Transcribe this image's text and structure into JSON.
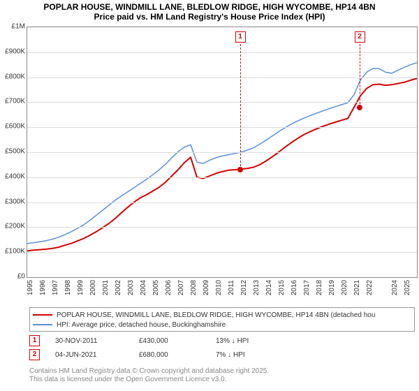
{
  "title_line1": "POPLAR HOUSE, WINDMILL LANE, BLEDLOW RIDGE, HIGH WYCOMBE, HP14 4BN",
  "title_line2": "Price paid vs. HM Land Registry's House Price Index (HPI)",
  "title_fontsize": 12,
  "chart": {
    "type": "line",
    "background_color": "#ffffff",
    "grid_color": "#dcdcdc",
    "plot_border_color": "#888888",
    "x_start": 1995,
    "x_end": 2026,
    "ylim": [
      0,
      1000000
    ],
    "ytick_step": 100000,
    "ytick_labels": [
      "£0",
      "£100K",
      "£200K",
      "£300K",
      "£400K",
      "£500K",
      "£600K",
      "£700K",
      "£800K",
      "£900K",
      "£1M"
    ],
    "xtick_years": [
      1995,
      1996,
      1997,
      1998,
      1999,
      2000,
      2001,
      2002,
      2003,
      2004,
      2005,
      2006,
      2007,
      2008,
      2009,
      2010,
      2011,
      2012,
      2013,
      2014,
      2015,
      2016,
      2017,
      2018,
      2019,
      2020,
      2021,
      2022,
      2024,
      2025
    ],
    "axis_fontsize": 10,
    "series": [
      {
        "name": "POPLAR HOUSE, WINDMILL LANE, BLEDLOW RIDGE, HIGH WYCOMBE, HP14 4BN (detached hou",
        "color": "#d10000",
        "line_width": 2,
        "year_start": 1995,
        "year_step": 0.5,
        "values": [
          105,
          108,
          110,
          112,
          115,
          120,
          128,
          135,
          145,
          155,
          168,
          182,
          198,
          215,
          235,
          258,
          280,
          300,
          318,
          330,
          345,
          360,
          380,
          405,
          430,
          458,
          480,
          400,
          395,
          405,
          415,
          422,
          428,
          430,
          432,
          435,
          440,
          450,
          465,
          482,
          500,
          520,
          538,
          555,
          570,
          582,
          593,
          603,
          612,
          620,
          628,
          635,
          680,
          725,
          755,
          770,
          772,
          768,
          770,
          775,
          780,
          788,
          795
        ]
      },
      {
        "name": "HPI: Average price, detached house, Buckinghamshire",
        "color": "#5a8fd6",
        "line_width": 1.5,
        "year_start": 1995,
        "year_step": 0.5,
        "values": [
          135,
          138,
          142,
          146,
          152,
          160,
          170,
          182,
          195,
          210,
          228,
          248,
          268,
          288,
          308,
          325,
          342,
          358,
          375,
          392,
          410,
          430,
          452,
          478,
          502,
          520,
          530,
          460,
          455,
          468,
          478,
          485,
          490,
          495,
          500,
          508,
          518,
          532,
          548,
          565,
          582,
          598,
          612,
          625,
          636,
          646,
          656,
          665,
          674,
          682,
          690,
          698,
          730,
          788,
          820,
          835,
          834,
          820,
          816,
          828,
          840,
          850,
          858
        ]
      }
    ],
    "markers": [
      {
        "label": "1",
        "year": 2011.92,
        "value_k": 430,
        "color": "#d10000"
      },
      {
        "label": "2",
        "year": 2021.42,
        "value_k": 680,
        "color": "#d10000"
      }
    ]
  },
  "legend": {
    "border_color": "#999999"
  },
  "sales": [
    {
      "marker": "1",
      "marker_color": "#d10000",
      "date": "30-NOV-2011",
      "price": "£430,000",
      "diff": "13% ↓ HPI"
    },
    {
      "marker": "2",
      "marker_color": "#d10000",
      "date": "04-JUN-2021",
      "price": "£680,000",
      "diff": "7% ↓ HPI"
    }
  ],
  "attribution": {
    "line1": "Contains HM Land Registry data © Crown copyright and database right 2025.",
    "line2": "This data is licensed under the Open Government Licence v3.0.",
    "color": "#888888"
  }
}
